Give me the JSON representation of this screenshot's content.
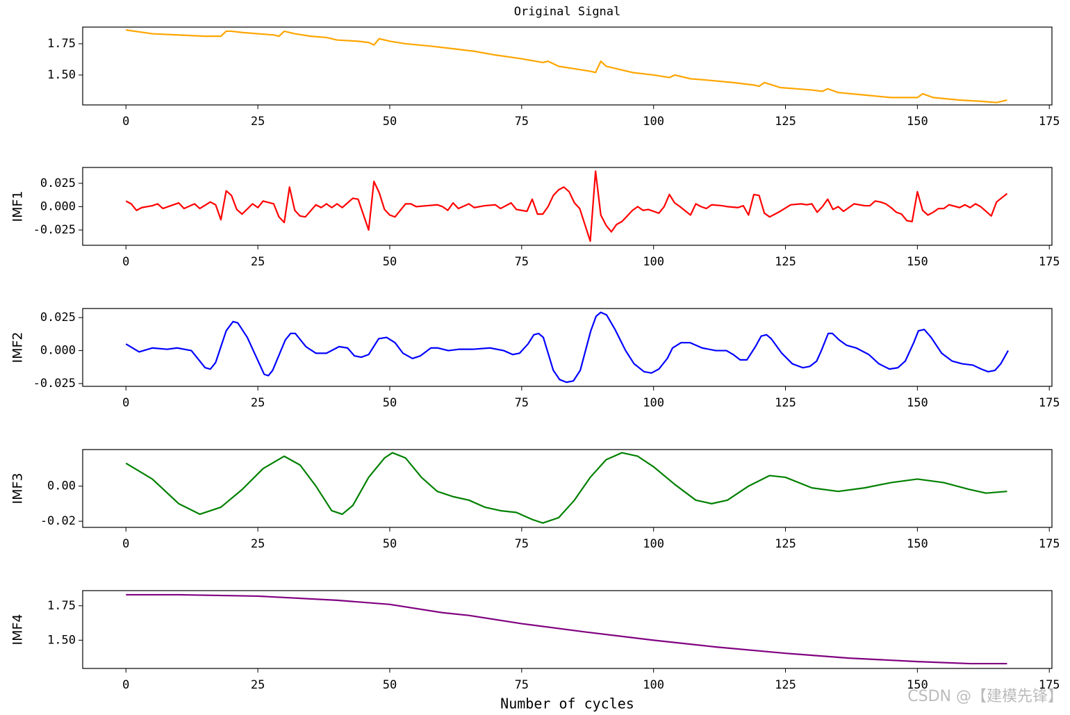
{
  "chart_data": [
    {
      "type": "line",
      "title": "Original Signal",
      "color": "#ffa500",
      "x": [
        0,
        5,
        10,
        15,
        18,
        19,
        20,
        22,
        25,
        28,
        29,
        30,
        32,
        35,
        38,
        40,
        44,
        46,
        47,
        48,
        50,
        53,
        58,
        62,
        66,
        70,
        75,
        79,
        80,
        82,
        85,
        88,
        89,
        90,
        91,
        93,
        96,
        100,
        103,
        104,
        107,
        110,
        115,
        119,
        120,
        121,
        124,
        130,
        132,
        133,
        135,
        140,
        145,
        150,
        151,
        153,
        158,
        162,
        165,
        167
      ],
      "values": [
        1.86,
        1.83,
        1.82,
        1.81,
        1.81,
        1.85,
        1.85,
        1.84,
        1.83,
        1.82,
        1.81,
        1.85,
        1.83,
        1.81,
        1.8,
        1.78,
        1.77,
        1.76,
        1.74,
        1.79,
        1.77,
        1.75,
        1.73,
        1.71,
        1.69,
        1.66,
        1.63,
        1.6,
        1.61,
        1.57,
        1.55,
        1.53,
        1.52,
        1.61,
        1.57,
        1.55,
        1.52,
        1.5,
        1.48,
        1.5,
        1.47,
        1.46,
        1.44,
        1.42,
        1.41,
        1.44,
        1.4,
        1.38,
        1.37,
        1.39,
        1.36,
        1.34,
        1.32,
        1.32,
        1.35,
        1.32,
        1.3,
        1.29,
        1.28,
        1.3
      ],
      "xlim": [
        -8.2,
        175.5
      ],
      "xticks": [
        0,
        25,
        50,
        75,
        100,
        125,
        150,
        175
      ],
      "ylim": [
        1.261,
        1.883
      ],
      "yticks": [
        {
          "value": 1.5,
          "label": "1.50"
        },
        1.75
      ]
    },
    {
      "type": "line",
      "ylabel": "IMF1",
      "color": "#ff0000",
      "x": [
        0,
        1,
        2,
        3,
        5,
        6,
        7,
        9,
        10,
        11,
        13,
        14,
        16,
        17,
        18,
        19,
        20,
        21,
        22,
        24,
        25,
        26,
        28,
        29,
        30,
        31,
        32,
        33,
        34,
        36,
        37,
        38,
        39,
        40,
        41,
        43,
        44,
        46,
        47,
        48,
        49,
        50,
        51,
        53,
        54,
        55,
        57,
        59,
        60,
        61,
        62,
        63,
        65,
        66,
        68,
        70,
        71,
        73,
        74,
        75,
        76,
        77,
        78,
        79,
        80,
        81,
        82,
        83,
        84,
        85,
        86,
        88,
        89,
        90,
        91,
        92,
        93,
        94,
        95,
        96,
        97,
        98,
        99,
        100,
        101,
        102,
        103,
        104,
        105,
        107,
        108,
        109,
        110,
        111,
        113,
        114,
        116,
        117,
        118,
        119,
        120,
        121,
        122,
        124,
        126,
        128,
        129,
        130,
        131,
        132,
        133,
        134,
        135,
        136,
        138,
        140,
        141,
        142,
        143,
        144,
        145,
        146,
        147,
        148,
        149,
        150,
        151,
        152,
        153,
        154,
        155,
        156,
        158,
        159,
        160,
        161,
        162,
        164,
        165,
        167
      ],
      "values": [
        0.006,
        0.003,
        -0.004,
        -0.001,
        0.001,
        0.003,
        -0.002,
        0.002,
        0.004,
        -0.002,
        0.003,
        -0.002,
        0.005,
        0.002,
        -0.014,
        0.017,
        0.012,
        -0.003,
        -0.008,
        0.003,
        -0.001,
        0.006,
        0.003,
        -0.011,
        -0.017,
        0.021,
        -0.004,
        -0.01,
        -0.011,
        0.002,
        -0.001,
        0.003,
        -0.001,
        0.003,
        -0.001,
        0.009,
        0.008,
        -0.025,
        0.027,
        0.015,
        -0.003,
        -0.009,
        -0.011,
        0.003,
        0.003,
        0,
        0.001,
        0.002,
        0,
        -0.004,
        0.004,
        -0.002,
        0.003,
        -0.001,
        0.001,
        0.002,
        -0.002,
        0.004,
        -0.003,
        -0.004,
        -0.005,
        0.008,
        -0.008,
        -0.008,
        0,
        0.012,
        0.018,
        0.021,
        0.016,
        0.004,
        -0.002,
        -0.037,
        0.038,
        -0.009,
        -0.02,
        -0.027,
        -0.019,
        -0.016,
        -0.01,
        -0.004,
        0,
        -0.004,
        -0.003,
        -0.005,
        -0.007,
        0,
        0.013,
        0.004,
        0,
        -0.009,
        0.003,
        0,
        -0.002,
        0.002,
        0.001,
        0,
        -0.001,
        0.001,
        -0.009,
        0.013,
        0.012,
        -0.007,
        -0.011,
        -0.005,
        0.002,
        0.003,
        0.002,
        0.003,
        -0.006,
        0,
        0.008,
        -0.003,
        0,
        -0.005,
        0.003,
        0.001,
        0.001,
        0.006,
        0.005,
        0.003,
        -0.001,
        -0.006,
        -0.008,
        -0.015,
        -0.016,
        0.016,
        -0.004,
        -0.009,
        -0.006,
        -0.002,
        -0.002,
        0.002,
        -0.001,
        0.002,
        -0.001,
        0.003,
        0,
        -0.01,
        0.005,
        0.014
      ],
      "xlim": [
        -8.2,
        175.5
      ],
      "xticks": [
        0,
        25,
        50,
        75,
        100,
        125,
        150,
        175
      ],
      "ylim": [
        -0.0414,
        0.042
      ],
      "yticks": [
        -0.025,
        {
          "value": 0,
          "label": "0.000"
        },
        0.025
      ]
    },
    {
      "type": "line",
      "ylabel": "IMF2",
      "color": "#0000ff",
      "x": [
        0,
        2.5,
        5,
        7.8,
        9.7,
        12.4,
        15,
        16,
        17,
        19,
        20.3,
        21.2,
        23,
        26.2,
        27,
        27.8,
        30.2,
        31.2,
        32.1,
        34.1,
        36,
        38,
        40.4,
        42,
        43.3,
        44.6,
        46,
        47.9,
        49.4,
        51,
        52.5,
        54.3,
        55.8,
        57.8,
        59.1,
        61.1,
        63.1,
        65.7,
        69,
        71.6,
        73.3,
        74.6,
        76.2,
        77.3,
        78.2,
        79.1,
        81,
        82.2,
        83.5,
        84.8,
        86.1,
        88.1,
        89.1,
        90,
        91.1,
        92.7,
        94.7,
        96.3,
        98.2,
        99.6,
        101,
        102.6,
        103.6,
        105.2,
        106.9,
        109.2,
        111.8,
        113.8,
        115.1,
        116.4,
        117.7,
        119.3,
        120.4,
        121.4,
        122.3,
        124.3,
        126.3,
        128.3,
        129.6,
        130.9,
        131.8,
        133.1,
        133.9,
        135.2,
        136.6,
        138.4,
        140.8,
        142.7,
        144.7,
        146.3,
        147.7,
        149.3,
        150.2,
        151.3,
        152.6,
        154.6,
        156.6,
        158.5,
        160.5,
        162.1,
        163.4,
        164.7,
        165.8,
        167.2
      ],
      "values": [
        0.005,
        -0.001,
        0.002,
        0.001,
        0.002,
        0,
        -0.013,
        -0.014,
        -0.009,
        0.015,
        0.022,
        0.021,
        0.01,
        -0.018,
        -0.019,
        -0.015,
        0.008,
        0.013,
        0.013,
        0.003,
        -0.002,
        -0.002,
        0.003,
        0.002,
        -0.004,
        -0.005,
        -0.003,
        0.009,
        0.01,
        0.006,
        -0.002,
        -0.006,
        -0.004,
        0.002,
        0.002,
        0,
        0.001,
        0.001,
        0.002,
        0,
        -0.003,
        -0.002,
        0.005,
        0.012,
        0.013,
        0.01,
        -0.015,
        -0.022,
        -0.024,
        -0.023,
        -0.015,
        0.015,
        0.026,
        0.029,
        0.027,
        0.016,
        0,
        -0.01,
        -0.016,
        -0.017,
        -0.014,
        -0.006,
        0.002,
        0.006,
        0.006,
        0.002,
        0,
        0,
        -0.003,
        -0.007,
        -0.007,
        0.003,
        0.011,
        0.012,
        0.009,
        -0.002,
        -0.01,
        -0.013,
        -0.012,
        -0.008,
        0,
        0.013,
        0.013,
        0.008,
        0.004,
        0.002,
        -0.003,
        -0.01,
        -0.014,
        -0.013,
        -0.008,
        0.006,
        0.015,
        0.016,
        0.01,
        -0.002,
        -0.008,
        -0.01,
        -0.011,
        -0.014,
        -0.016,
        -0.015,
        -0.01,
        0
      ],
      "xlim": [
        -8.2,
        175.5
      ],
      "xticks": [
        0,
        25,
        50,
        75,
        100,
        125,
        150,
        175
      ],
      "ylim": [
        -0.0271,
        0.0319
      ],
      "yticks": [
        -0.025,
        {
          "value": 0,
          "label": "0.000"
        },
        0.025
      ]
    },
    {
      "type": "line",
      "ylabel": "IMF3",
      "color": "#008000",
      "x": [
        0,
        5,
        10,
        14,
        18,
        22,
        26,
        30,
        33,
        36,
        39,
        41,
        43,
        46,
        49,
        50.5,
        53,
        56,
        59,
        62,
        65,
        68,
        71,
        74,
        77,
        79,
        82,
        85,
        88,
        91,
        94,
        97,
        100,
        104,
        108,
        111,
        114,
        118,
        122,
        125,
        130,
        135,
        140,
        145,
        150,
        155,
        160,
        163,
        167
      ],
      "values": [
        0.013,
        0.004,
        -0.01,
        -0.016,
        -0.012,
        -0.002,
        0.01,
        0.017,
        0.012,
        0,
        -0.014,
        -0.016,
        -0.011,
        0.005,
        0.016,
        0.019,
        0.016,
        0.005,
        -0.003,
        -0.006,
        -0.008,
        -0.012,
        -0.014,
        -0.015,
        -0.019,
        -0.021,
        -0.018,
        -0.008,
        0.005,
        0.015,
        0.019,
        0.017,
        0.011,
        0.001,
        -0.008,
        -0.01,
        -0.008,
        0,
        0.006,
        0.005,
        -0.001,
        -0.003,
        -0.001,
        0.002,
        0.004,
        0.002,
        -0.002,
        -0.004,
        -0.003
      ],
      "xlim": [
        -8.2,
        175.5
      ],
      "xticks": [
        0,
        25,
        50,
        75,
        100,
        125,
        150,
        175
      ],
      "ylim": [
        -0.0235,
        0.0208
      ],
      "yticks": [
        -0.02,
        {
          "value": 0,
          "label": "0.00"
        }
      ]
    },
    {
      "type": "line",
      "ylabel": "IMF4",
      "xlabel": "Number of cycles",
      "color": "#800080",
      "x": [
        0,
        10,
        25,
        40,
        50,
        60,
        65,
        75,
        87,
        100,
        112,
        125,
        137,
        150,
        160,
        167
      ],
      "values": [
        1.83,
        1.83,
        1.82,
        1.79,
        1.76,
        1.7,
        1.68,
        1.62,
        1.56,
        1.5,
        1.45,
        1.405,
        1.37,
        1.345,
        1.33,
        1.33
      ],
      "xlim": [
        -8.2,
        175.5
      ],
      "xticks": [
        0,
        25,
        50,
        75,
        100,
        125,
        150,
        175
      ],
      "ylim": [
        1.295,
        1.86
      ],
      "yticks": [
        {
          "value": 1.5,
          "label": "1.50"
        },
        1.75
      ]
    }
  ],
  "watermark": "CSDN @【建模先锋】"
}
